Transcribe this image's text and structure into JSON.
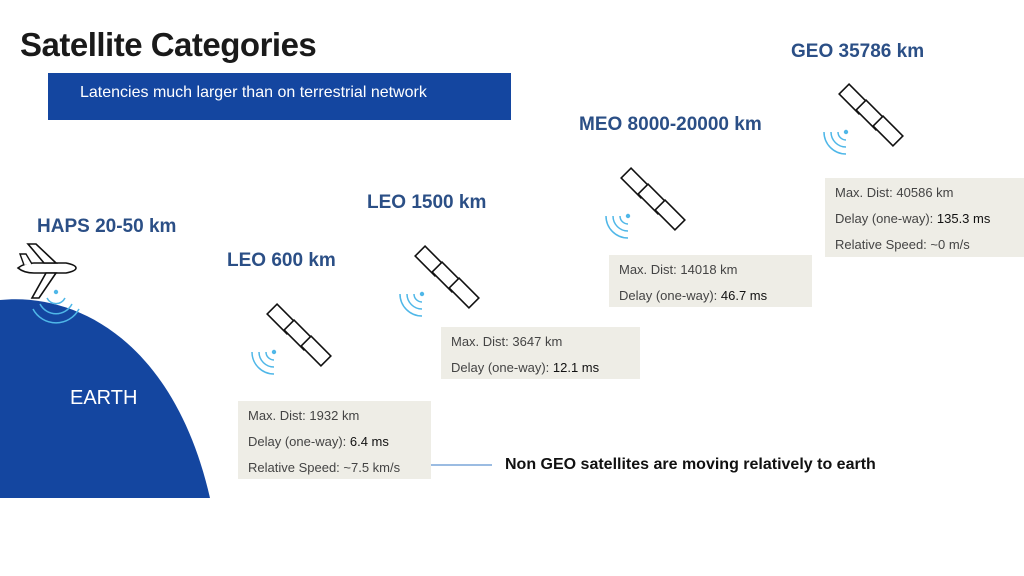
{
  "title": "Satellite Categories",
  "banner": "Latencies much larger than on terrestrial network",
  "earth_label": "EARTH",
  "note": "Non GEO satellites are moving relatively to earth",
  "colors": {
    "earth": "#1446a0",
    "label": "#2b4f86",
    "info_bg": "#eeede6",
    "signal": "#4fb7e8",
    "arrow": "#7aa6d8"
  },
  "icons": [
    "airplane-icon",
    "satellite-icon",
    "signal-waves-icon",
    "arrow-icon"
  ],
  "orbits": {
    "haps": {
      "label": "HAPS 20-50 km"
    },
    "leo600": {
      "label": "LEO 600 km",
      "max_dist_label": "Max. Dist: ",
      "max_dist": "1932 km",
      "delay_label": "Delay (one-way): ",
      "delay": "6.4 ms",
      "speed_label": "Relative Speed: ",
      "speed": "~7.5 km/s"
    },
    "leo1500": {
      "label": "LEO 1500 km",
      "max_dist_label": "Max. Dist: ",
      "max_dist": "3647 km",
      "delay_label": "Delay (one-way): ",
      "delay": "12.1 ms"
    },
    "meo": {
      "label": "MEO 8000-20000 km",
      "max_dist_label": "Max. Dist: ",
      "max_dist": "14018 km",
      "delay_label": "Delay (one-way): ",
      "delay": "46.7 ms"
    },
    "geo": {
      "label": "GEO 35786 km",
      "max_dist_label": "Max. Dist: ",
      "max_dist": "40586 km",
      "delay_label": "Delay (one-way): ",
      "delay": "135.3 ms",
      "speed_label": "Relative Speed: ",
      "speed": "~0 m/s"
    }
  }
}
